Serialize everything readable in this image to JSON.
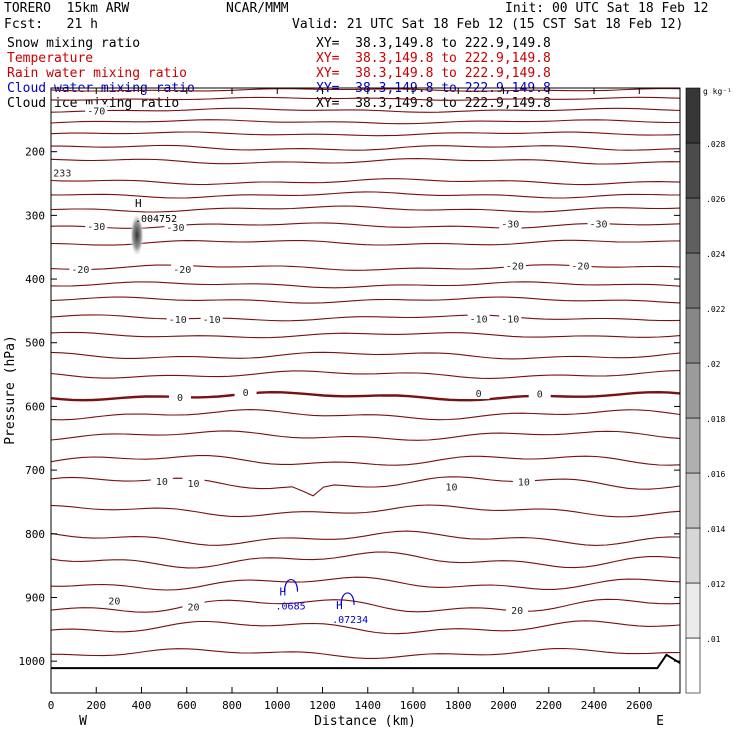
{
  "header": {
    "model": "TORERO  15km ARW",
    "org": "NCAR/MMM",
    "init": "Init: 00 UTC Sat 18 Feb 12",
    "fcst": "Fcst:   21 h",
    "valid": "Valid: 21 UTC Sat 18 Feb 12 (15 CST Sat 18 Feb 12)"
  },
  "fields": [
    {
      "label": "Snow mixing ratio",
      "xy": "XY=  38.3,149.8 to 222.9,149.8",
      "color": "#000000",
      "xy_color": "#000000"
    },
    {
      "label": "Temperature",
      "xy": "XY=  38.3,149.8 to 222.9,149.8",
      "color": "#cc0000",
      "xy_color": "#cc0000"
    },
    {
      "label": "Rain water mixing ratio",
      "xy": "XY=  38.3,149.8 to 222.9,149.8",
      "color": "#cc0000",
      "xy_color": "#cc0000"
    },
    {
      "label": "Cloud water mixing ratio",
      "xy": "XY=  38.3,149.8 to 222.9,149.8",
      "color": "#0000cc",
      "xy_color": "#0000cc"
    },
    {
      "label": "Cloud ice mixing ratio",
      "xy": "XY=  38.3,149.8 to 222.9,149.8",
      "color": "#000000",
      "xy_color": "#000000"
    }
  ],
  "chart_data": {
    "type": "contour",
    "xlabel": "Distance (km)",
    "ylabel": "Pressure (hPa)",
    "xlim": [
      0,
      2780
    ],
    "ylim": [
      1050,
      100
    ],
    "x_ticks": [
      0,
      200,
      400,
      600,
      800,
      1000,
      1200,
      1400,
      1600,
      1800,
      2000,
      2200,
      2400,
      2600
    ],
    "y_ticks": [
      200,
      300,
      400,
      500,
      600,
      700,
      800,
      900,
      1000
    ],
    "left_end": "W",
    "right_end": "E",
    "colorbar": {
      "unit": "g kg⁻¹",
      "ticks": [
        ".01",
        ".012",
        ".014",
        ".016",
        ".018",
        ".02",
        ".022",
        ".024",
        ".026",
        ".028"
      ]
    },
    "temperature_labels": [
      {
        "x": 200,
        "p": 317,
        "text": "-30"
      },
      {
        "x": 550,
        "p": 318,
        "text": "-30"
      },
      {
        "x": 2030,
        "p": 313,
        "text": "-30"
      },
      {
        "x": 2420,
        "p": 313,
        "text": "-30"
      },
      {
        "x": 130,
        "p": 384,
        "text": "-20"
      },
      {
        "x": 580,
        "p": 384,
        "text": "-20"
      },
      {
        "x": 2050,
        "p": 379,
        "text": "-20"
      },
      {
        "x": 2340,
        "p": 379,
        "text": "-20"
      },
      {
        "x": 560,
        "p": 463,
        "text": "-10"
      },
      {
        "x": 710,
        "p": 463,
        "text": "-10"
      },
      {
        "x": 1890,
        "p": 462,
        "text": "-10"
      },
      {
        "x": 2030,
        "p": 462,
        "text": "-10"
      },
      {
        "x": 570,
        "p": 585,
        "text": "0"
      },
      {
        "x": 860,
        "p": 577,
        "text": "0"
      },
      {
        "x": 1890,
        "p": 579,
        "text": "0"
      },
      {
        "x": 2160,
        "p": 580,
        "text": "0"
      },
      {
        "x": 490,
        "p": 717,
        "text": "10"
      },
      {
        "x": 630,
        "p": 720,
        "text": "10"
      },
      {
        "x": 1770,
        "p": 726,
        "text": "10"
      },
      {
        "x": 2090,
        "p": 718,
        "text": "10"
      },
      {
        "x": 280,
        "p": 905,
        "text": "20"
      },
      {
        "x": 630,
        "p": 914,
        "text": "20"
      },
      {
        "x": 2060,
        "p": 920,
        "text": "20"
      },
      {
        "x": 200,
        "p": 135,
        "text": "-70"
      },
      {
        "x": 50,
        "p": 233,
        "text": "233"
      }
    ],
    "snow_max": {
      "x": 380,
      "p": 290,
      "label": "H",
      "value": ".004752"
    },
    "cloud_water_maxima": [
      {
        "x": 1010,
        "p": 897,
        "label": "H",
        "value": ".0685"
      },
      {
        "x": 1260,
        "p": 918,
        "label": "H",
        "value": ".07234"
      }
    ]
  }
}
